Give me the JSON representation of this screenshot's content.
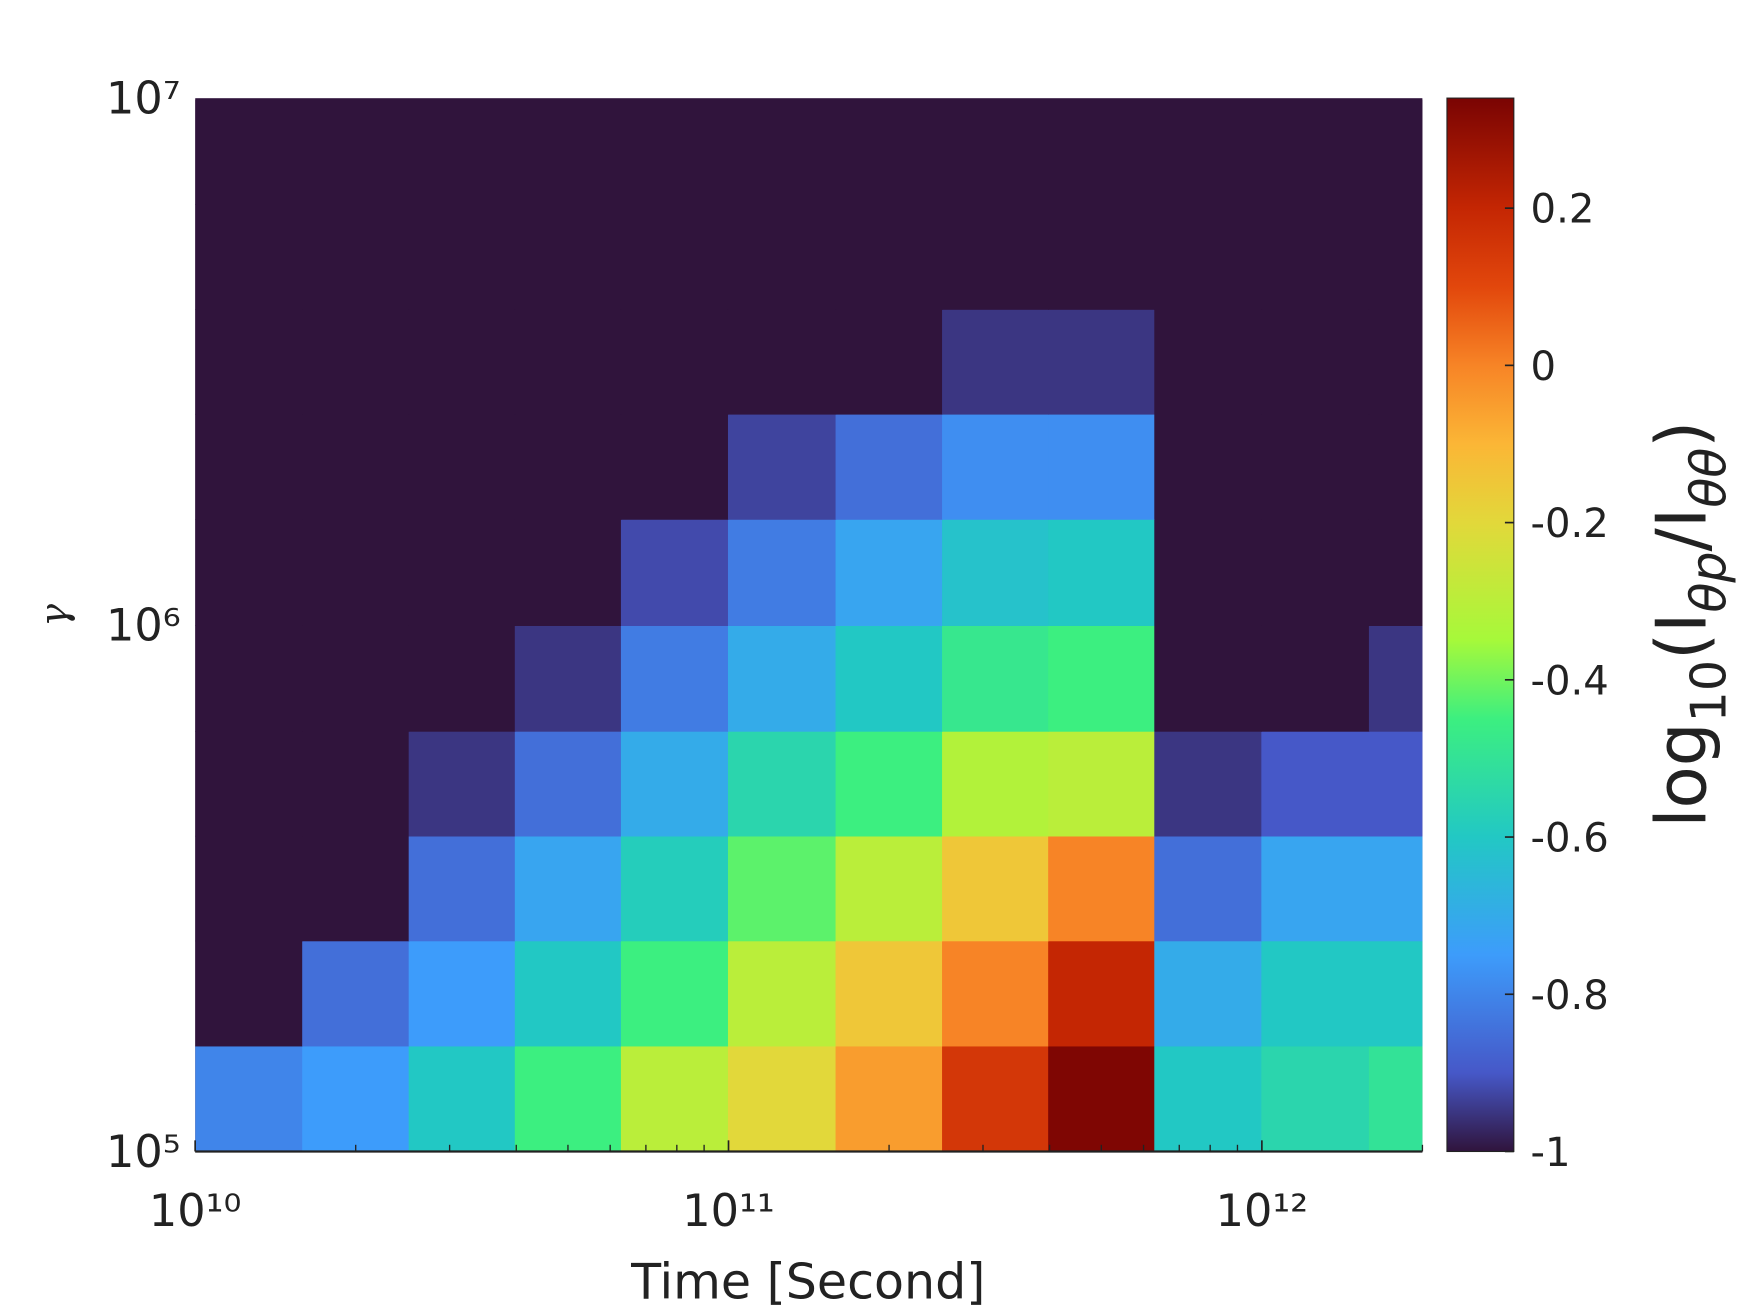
{
  "chart_data": {
    "type": "heatmap",
    "xlabel": "Time [Second]",
    "ylabel": "γ",
    "colorbar_label": [
      "log",
      "10",
      "(I",
      "θp",
      "/I",
      "θθ",
      ")"
    ],
    "xscale": "log",
    "yscale": "log",
    "xlim": [
      10000000000.0,
      2000000000000.0
    ],
    "ylim": [
      100000.0,
      10000000.0
    ],
    "xticks": [
      {
        "value": 10000000000.0,
        "label": "10¹⁰"
      },
      {
        "value": 100000000000.0,
        "label": "10¹¹"
      },
      {
        "value": 1000000000000.0,
        "label": "10¹²"
      }
    ],
    "xminorticks": [
      20000000000.0,
      30000000000.0,
      40000000000.0,
      50000000000.0,
      60000000000.0,
      70000000000.0,
      80000000000.0,
      90000000000.0,
      200000000000.0,
      300000000000.0,
      400000000000.0,
      500000000000.0,
      600000000000.0,
      700000000000.0,
      800000000000.0,
      900000000000.0,
      2000000000000.0
    ],
    "yticks": [
      {
        "value": 100000.0,
        "label": "10⁵"
      },
      {
        "value": 1000000.0,
        "label": "10⁶"
      },
      {
        "value": 10000000.0,
        "label": "10⁷"
      }
    ],
    "clim": [
      -1,
      0.34
    ],
    "cticks": [
      -1,
      -0.8,
      -0.6,
      -0.4,
      -0.2,
      0,
      0.2
    ],
    "colormap": [
      [
        -1,
        "#30143c"
      ],
      [
        -0.9,
        "#4658c8"
      ],
      [
        -0.75,
        "#3d9cfb"
      ],
      [
        -0.6,
        "#22c8c4"
      ],
      [
        -0.45,
        "#3cef80"
      ],
      [
        -0.35,
        "#a6f93a"
      ],
      [
        -0.2,
        "#e2d83a"
      ],
      [
        -0.1,
        "#fbb636"
      ],
      [
        0,
        "#f78426"
      ],
      [
        0.1,
        "#e2470c"
      ],
      [
        0.2,
        "#c42603"
      ],
      [
        0.34,
        "#7a0403"
      ]
    ],
    "x": [
      12600000000.0,
      20000000000.0,
      31600000000.0,
      50000000000.0,
      79000000000.0,
      126000000000.0,
      200000000000.0,
      316000000000.0,
      500000000000.0,
      790000000000.0,
      1260000000000.0,
      2000000000000.0
    ],
    "y": [
      126000.0,
      200000.0,
      316000.0,
      500000.0,
      790000.0,
      1260000.0,
      2000000.0,
      3160000.0,
      5000000.0,
      7900000.0
    ],
    "z": [
      [
        -0.8,
        -0.75,
        -0.6,
        -0.45,
        -0.3,
        -0.2,
        -0.05,
        0.15,
        0.33,
        -0.6,
        -0.55,
        -0.5
      ],
      [
        -1,
        -0.85,
        -0.75,
        -0.6,
        -0.45,
        -0.3,
        -0.15,
        0,
        0.2,
        -0.7,
        -0.6,
        -0.6
      ],
      [
        -1,
        -1,
        -0.85,
        -0.72,
        -0.58,
        -0.42,
        -0.3,
        -0.15,
        0,
        -0.85,
        -0.72,
        -0.72
      ],
      [
        -1,
        -1,
        -0.95,
        -0.85,
        -0.7,
        -0.55,
        -0.45,
        -0.32,
        -0.3,
        -0.95,
        -0.9,
        -0.9
      ],
      [
        -1,
        -1,
        -1,
        -0.95,
        -0.82,
        -0.7,
        -0.6,
        -0.48,
        -0.45,
        -1,
        -1,
        -0.95
      ],
      [
        -1,
        -1,
        -1,
        -1,
        -0.92,
        -0.82,
        -0.72,
        -0.62,
        -0.6,
        -1,
        -1,
        -1
      ],
      [
        -1,
        -1,
        -1,
        -1,
        -1,
        -0.93,
        -0.85,
        -0.78,
        -0.78,
        -1,
        -1,
        -1
      ],
      [
        -1,
        -1,
        -1,
        -1,
        -1,
        -1,
        -1,
        -0.95,
        -0.95,
        -1,
        -1,
        -1
      ],
      [
        -1,
        -1,
        -1,
        -1,
        -1,
        -1,
        -1,
        -1,
        -1,
        -1,
        -1,
        -1
      ],
      [
        -1,
        -1,
        -1,
        -1,
        -1,
        -1,
        -1,
        -1,
        -1,
        -1,
        -1,
        -1
      ]
    ]
  }
}
